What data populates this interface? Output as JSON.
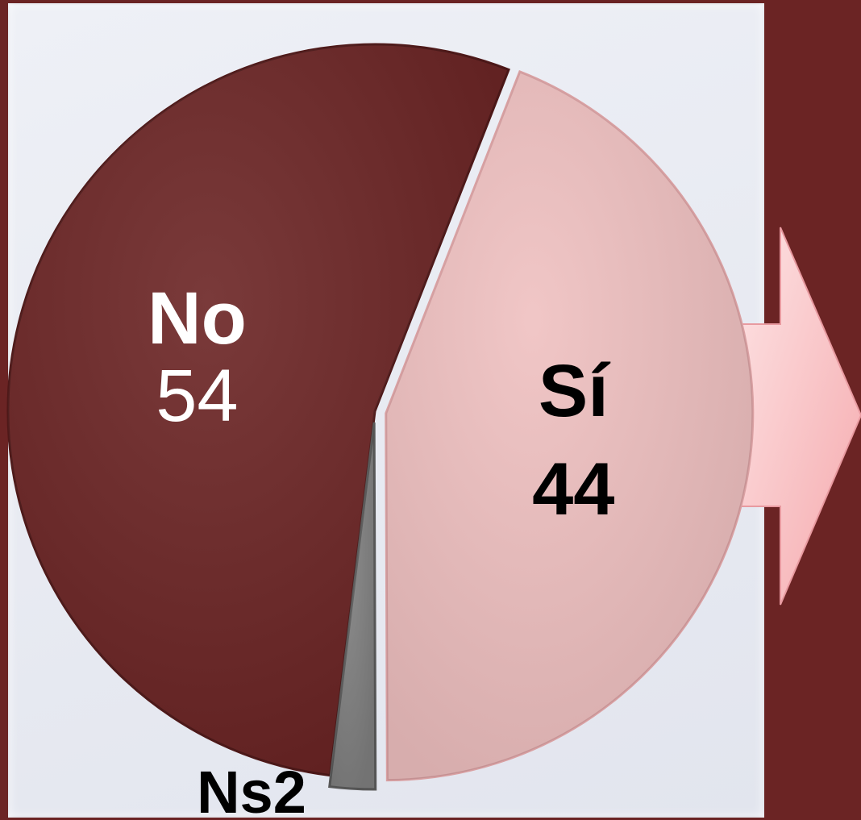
{
  "chart_data": {
    "type": "pie",
    "categories": [
      "No",
      "Sí",
      "Ns"
    ],
    "values": [
      54,
      44,
      2
    ],
    "value_labels": [
      "54",
      "44",
      "2"
    ],
    "colors": [
      "#6b2424",
      "#efc0c0",
      "#808080"
    ],
    "label_colors": [
      "#ffffff",
      "#000000",
      "#000000"
    ],
    "start_angle_deg": 187,
    "direction": "clockwise",
    "exploded": [
      "Sí",
      "Ns"
    ]
  },
  "decor": {
    "background": "#6b2424",
    "panel": "#e6e8f0",
    "arrow_color": "#f7b9bb",
    "arrow_direction": "right"
  }
}
